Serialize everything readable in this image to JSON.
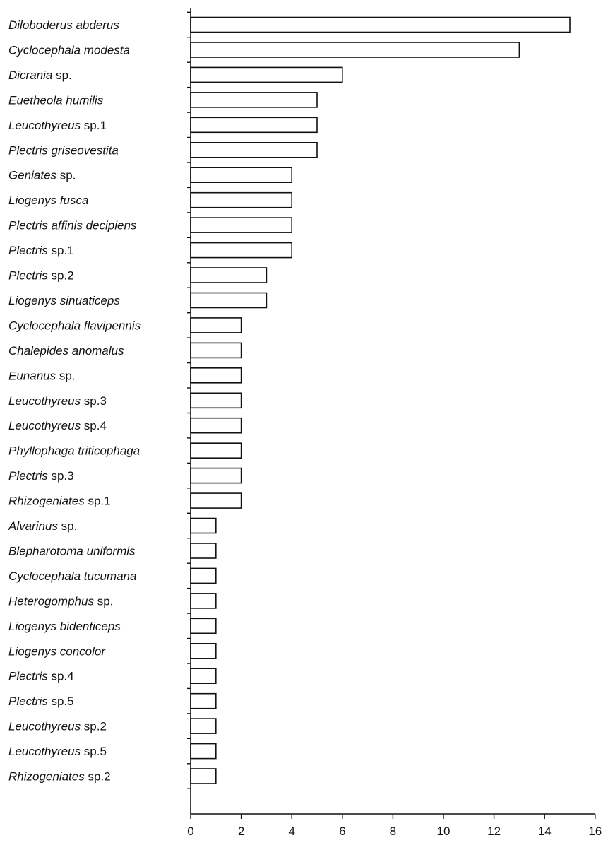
{
  "chart_data": {
    "type": "bar",
    "orientation": "horizontal",
    "title": "",
    "xlabel": "",
    "ylabel": "",
    "xlim": [
      0,
      16
    ],
    "xticks": [
      "0",
      "2",
      "4",
      "6",
      "8",
      "10",
      "12",
      "14",
      "16"
    ],
    "grid": false,
    "bar_fill": "#ffffff",
    "bar_edge": "#111111",
    "categories": [
      {
        "genus": "Diloboderus abderus",
        "suffix": ""
      },
      {
        "genus": "Cyclocephala modesta",
        "suffix": ""
      },
      {
        "genus": "Dicrania",
        "suffix": " sp."
      },
      {
        "genus": "Euetheola humilis",
        "suffix": ""
      },
      {
        "genus": "Leucothyreus",
        "suffix": " sp.1"
      },
      {
        "genus": "Plectris griseovestita",
        "suffix": ""
      },
      {
        "genus": "Geniates",
        "suffix": " sp."
      },
      {
        "genus": "Liogenys fusca",
        "suffix": ""
      },
      {
        "genus": "Plectris affinis decipiens",
        "suffix": ""
      },
      {
        "genus": "Plectris",
        "suffix": " sp.1"
      },
      {
        "genus": "Plectris",
        "suffix": " sp.2"
      },
      {
        "genus": "Liogenys sinuaticeps",
        "suffix": ""
      },
      {
        "genus": "Cyclocephala flavipennis",
        "suffix": ""
      },
      {
        "genus": "Chalepides anomalus",
        "suffix": ""
      },
      {
        "genus": "Eunanus",
        "suffix": " sp."
      },
      {
        "genus": "Leucothyreus",
        "suffix": " sp.3"
      },
      {
        "genus": "Leucothyreus",
        "suffix": " sp.4"
      },
      {
        "genus": "Phyllophaga triticophaga",
        "suffix": ""
      },
      {
        "genus": "Plectris",
        "suffix": " sp.3"
      },
      {
        "genus": "Rhizogeniates",
        "suffix": " sp.1"
      },
      {
        "genus": "Alvarinus",
        "suffix": " sp."
      },
      {
        "genus": "Blepharotoma uniformis",
        "suffix": ""
      },
      {
        "genus": "Cyclocephala tucumana",
        "suffix": ""
      },
      {
        "genus": "Heterogomphus",
        "suffix": " sp."
      },
      {
        "genus": "Liogenys bidenticeps",
        "suffix": ""
      },
      {
        "genus": "Liogenys concolor",
        "suffix": ""
      },
      {
        "genus": "Plectris",
        "suffix": " sp.4"
      },
      {
        "genus": "Plectris",
        "suffix": " sp.5"
      },
      {
        "genus": "Leucothyreus",
        "suffix": " sp.2"
      },
      {
        "genus": "Leucothyreus",
        "suffix": " sp.5"
      },
      {
        "genus": "Rhizogeniates",
        "suffix": " sp.2"
      }
    ],
    "values": [
      15,
      13,
      6,
      5,
      5,
      5,
      4,
      4,
      4,
      4,
      3,
      3,
      2,
      2,
      2,
      2,
      2,
      2,
      2,
      2,
      1,
      1,
      1,
      1,
      1,
      1,
      1,
      1,
      1,
      1,
      1
    ]
  }
}
